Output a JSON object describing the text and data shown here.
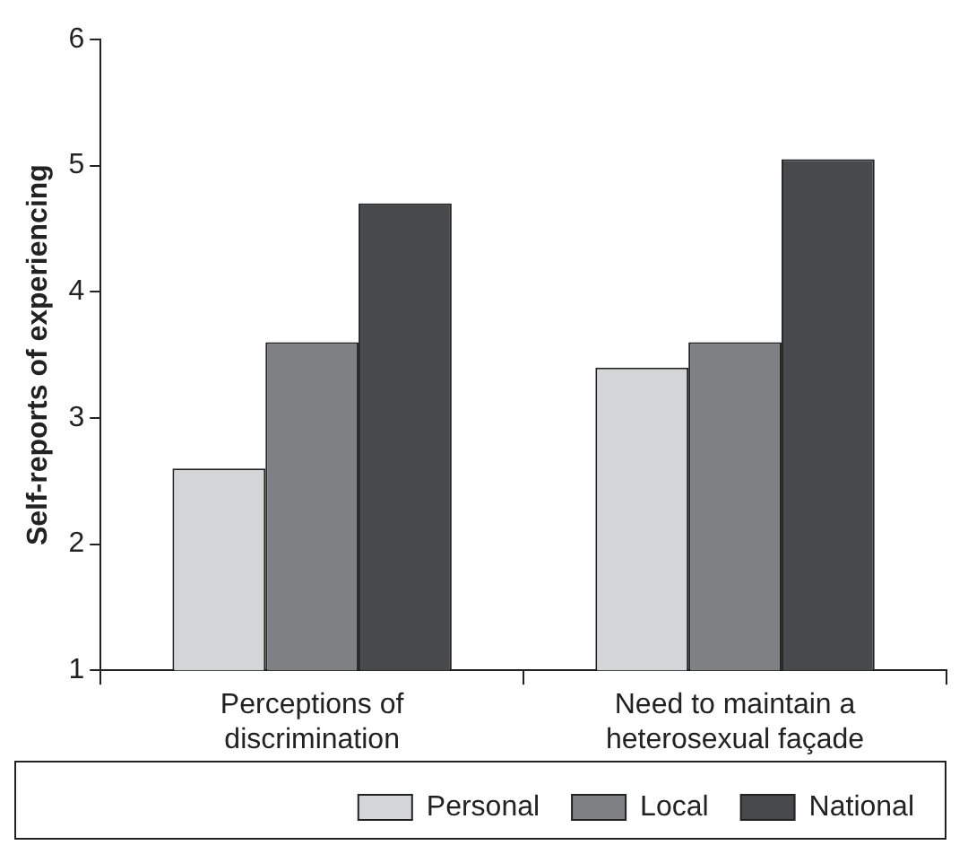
{
  "chart_data": {
    "type": "bar",
    "ylabel": "Self-reports of experiencing",
    "categories": [
      "Perceptions of discrimination",
      "Need to maintain a heterosexual façade"
    ],
    "series": [
      {
        "name": "Personal",
        "color": "#d4d5d7",
        "values": [
          2.6,
          3.4
        ]
      },
      {
        "name": "Local",
        "color": "#7f8084",
        "values": [
          3.6,
          3.6
        ]
      },
      {
        "name": "National",
        "color": "#48494b",
        "values": [
          4.7,
          5.05
        ]
      }
    ],
    "ylim": [
      1,
      6
    ],
    "yticks": [
      1,
      2,
      3,
      4,
      5,
      6
    ],
    "grid": false,
    "legend": "bottom"
  }
}
